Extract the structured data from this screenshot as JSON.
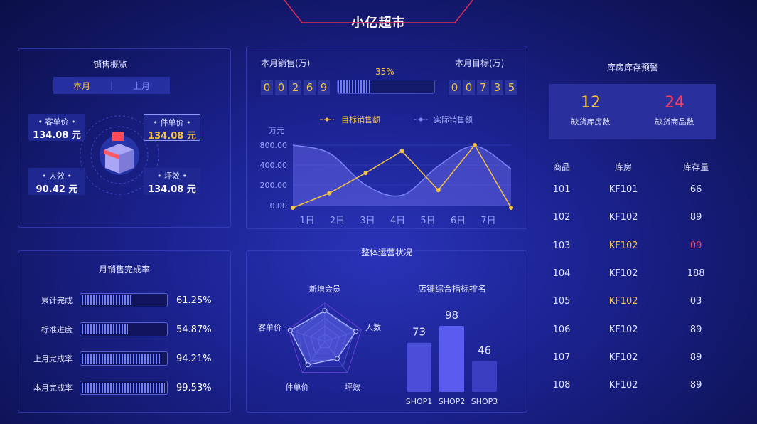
{
  "title": "小亿超市",
  "colors": {
    "accent": "#f5c242",
    "alert": "#ff3b5c",
    "primary": "#5a5cf0",
    "background": "#141a6e"
  },
  "sales_overview": {
    "title": "销售概览",
    "tabs": [
      {
        "label": "本月",
        "active": true
      },
      {
        "label": "上月",
        "active": false
      }
    ],
    "icon": "store-icon",
    "kpis": [
      {
        "label": "• 客单价 •",
        "value": "134.08 元"
      },
      {
        "label": "• 件单价 •",
        "value": "134.08 元",
        "selected": true
      },
      {
        "label": "• 人效 •",
        "value": "90.42 元"
      },
      {
        "label": "• 坪效 •",
        "value": "134.08 元"
      }
    ]
  },
  "completion": {
    "title": "月销售完成率",
    "rows": [
      {
        "label": "累计完成",
        "pct": "61.25%",
        "value": 61.25
      },
      {
        "label": "标准进度",
        "pct": "54.87%",
        "value": 54.87
      },
      {
        "label": "上月完成率",
        "pct": "94.21%",
        "value": 94.21
      },
      {
        "label": "本月完成率",
        "pct": "99.53%",
        "value": 99.53
      }
    ]
  },
  "sales": {
    "month_sales_label": "本月销售(万)",
    "month_sales_digits": [
      "0",
      "0",
      "2",
      "6",
      "9"
    ],
    "target_label": "本月目标(万)",
    "target_digits": [
      "0",
      "0",
      "7",
      "3",
      "5"
    ],
    "progress_label": "35%",
    "progress": 35
  },
  "chart_data": [
    {
      "type": "line",
      "ylabel": "万元",
      "yticks": [
        "800.00",
        "400.00",
        "200.00",
        "0.00"
      ],
      "categories": [
        "1日",
        "2日",
        "3日",
        "4日",
        "5日",
        "6日",
        "7日"
      ],
      "series": [
        {
          "name": "目标销售额",
          "color": "#f5c242",
          "values": [
            0,
            120,
            320,
            680,
            150,
            800,
            0
          ]
        },
        {
          "name": "实际销售额",
          "color": "#7c84f5",
          "style": "smooth-area",
          "values": [
            800,
            640,
            200,
            100,
            390,
            780,
            360
          ]
        }
      ],
      "legend": "top"
    },
    {
      "type": "radar",
      "indicators": [
        "新增会员",
        "人数",
        "坪效",
        "件单价",
        "客单价"
      ],
      "values": [
        0.8,
        0.85,
        0.55,
        0.75,
        0.95
      ]
    },
    {
      "type": "bar",
      "title": "店铺综合指标排名",
      "categories": [
        "SHOP1",
        "SHOP2",
        "SHOP3"
      ],
      "values": [
        73,
        98,
        46
      ]
    }
  ],
  "operations": {
    "title": "整体运营状况"
  },
  "inventory": {
    "title": "库房库存预警",
    "stats": [
      {
        "value": "12",
        "label": "缺货库房数"
      },
      {
        "value": "24",
        "label": "缺货商品数"
      }
    ],
    "columns": [
      "商品",
      "库房",
      "库存量"
    ],
    "rows": [
      [
        "101",
        "KF101",
        "66",
        ""
      ],
      [
        "102",
        "KF102",
        "89",
        ""
      ],
      [
        "103",
        "KF102",
        "09",
        "warn"
      ],
      [
        "104",
        "KF102",
        "188",
        ""
      ],
      [
        "105",
        "KF102",
        "03",
        "warn2"
      ],
      [
        "106",
        "KF102",
        "89",
        ""
      ],
      [
        "107",
        "KF102",
        "89",
        ""
      ],
      [
        "108",
        "KF102",
        "89",
        ""
      ]
    ]
  }
}
